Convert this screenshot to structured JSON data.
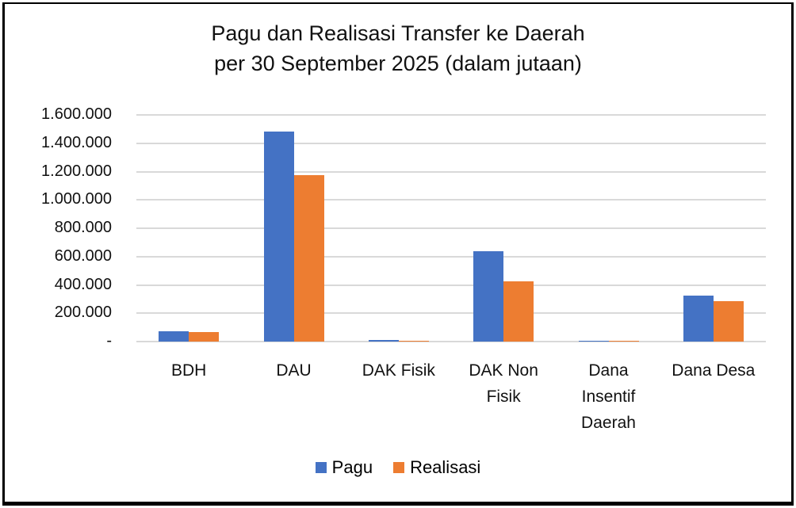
{
  "chart_data": {
    "type": "bar",
    "title": "Pagu dan Realisasi Transfer ke Daerah per 30 September 2025 (dalam jutaan)",
    "title_lines": [
      "Pagu dan Realisasi Transfer ke Daerah",
      "per 30 September 2025 (dalam jutaan)"
    ],
    "categories": [
      "BDH",
      "DAU",
      "DAK Fisik",
      "DAK Non Fisik",
      "Dana Insentif Daerah",
      "Dana Desa"
    ],
    "category_label_lines": [
      [
        "BDH"
      ],
      [
        "DAU"
      ],
      [
        "DAK Fisik"
      ],
      [
        "DAK Non",
        "Fisik"
      ],
      [
        "Dana",
        "Insentif",
        "Daerah"
      ],
      [
        "Dana Desa"
      ]
    ],
    "series": [
      {
        "name": "Pagu",
        "color": "#4472C4",
        "values": [
          72000,
          1482000,
          12000,
          638000,
          6000,
          324000
        ]
      },
      {
        "name": "Realisasi",
        "color": "#ED7D31",
        "values": [
          66000,
          1175000,
          4000,
          425000,
          3000,
          285000
        ]
      }
    ],
    "xlabel": "",
    "ylabel": "",
    "ylim": [
      0,
      1600000
    ],
    "yticks": [
      0,
      200000,
      400000,
      600000,
      800000,
      1000000,
      1200000,
      1400000,
      1600000
    ],
    "ytick_labels": [
      "-",
      "200.000",
      "400.000",
      "600.000",
      "800.000",
      "1.000.000",
      "1.200.000",
      "1.400.000",
      "1.600.000"
    ],
    "grid": true,
    "legend_position": "bottom"
  }
}
